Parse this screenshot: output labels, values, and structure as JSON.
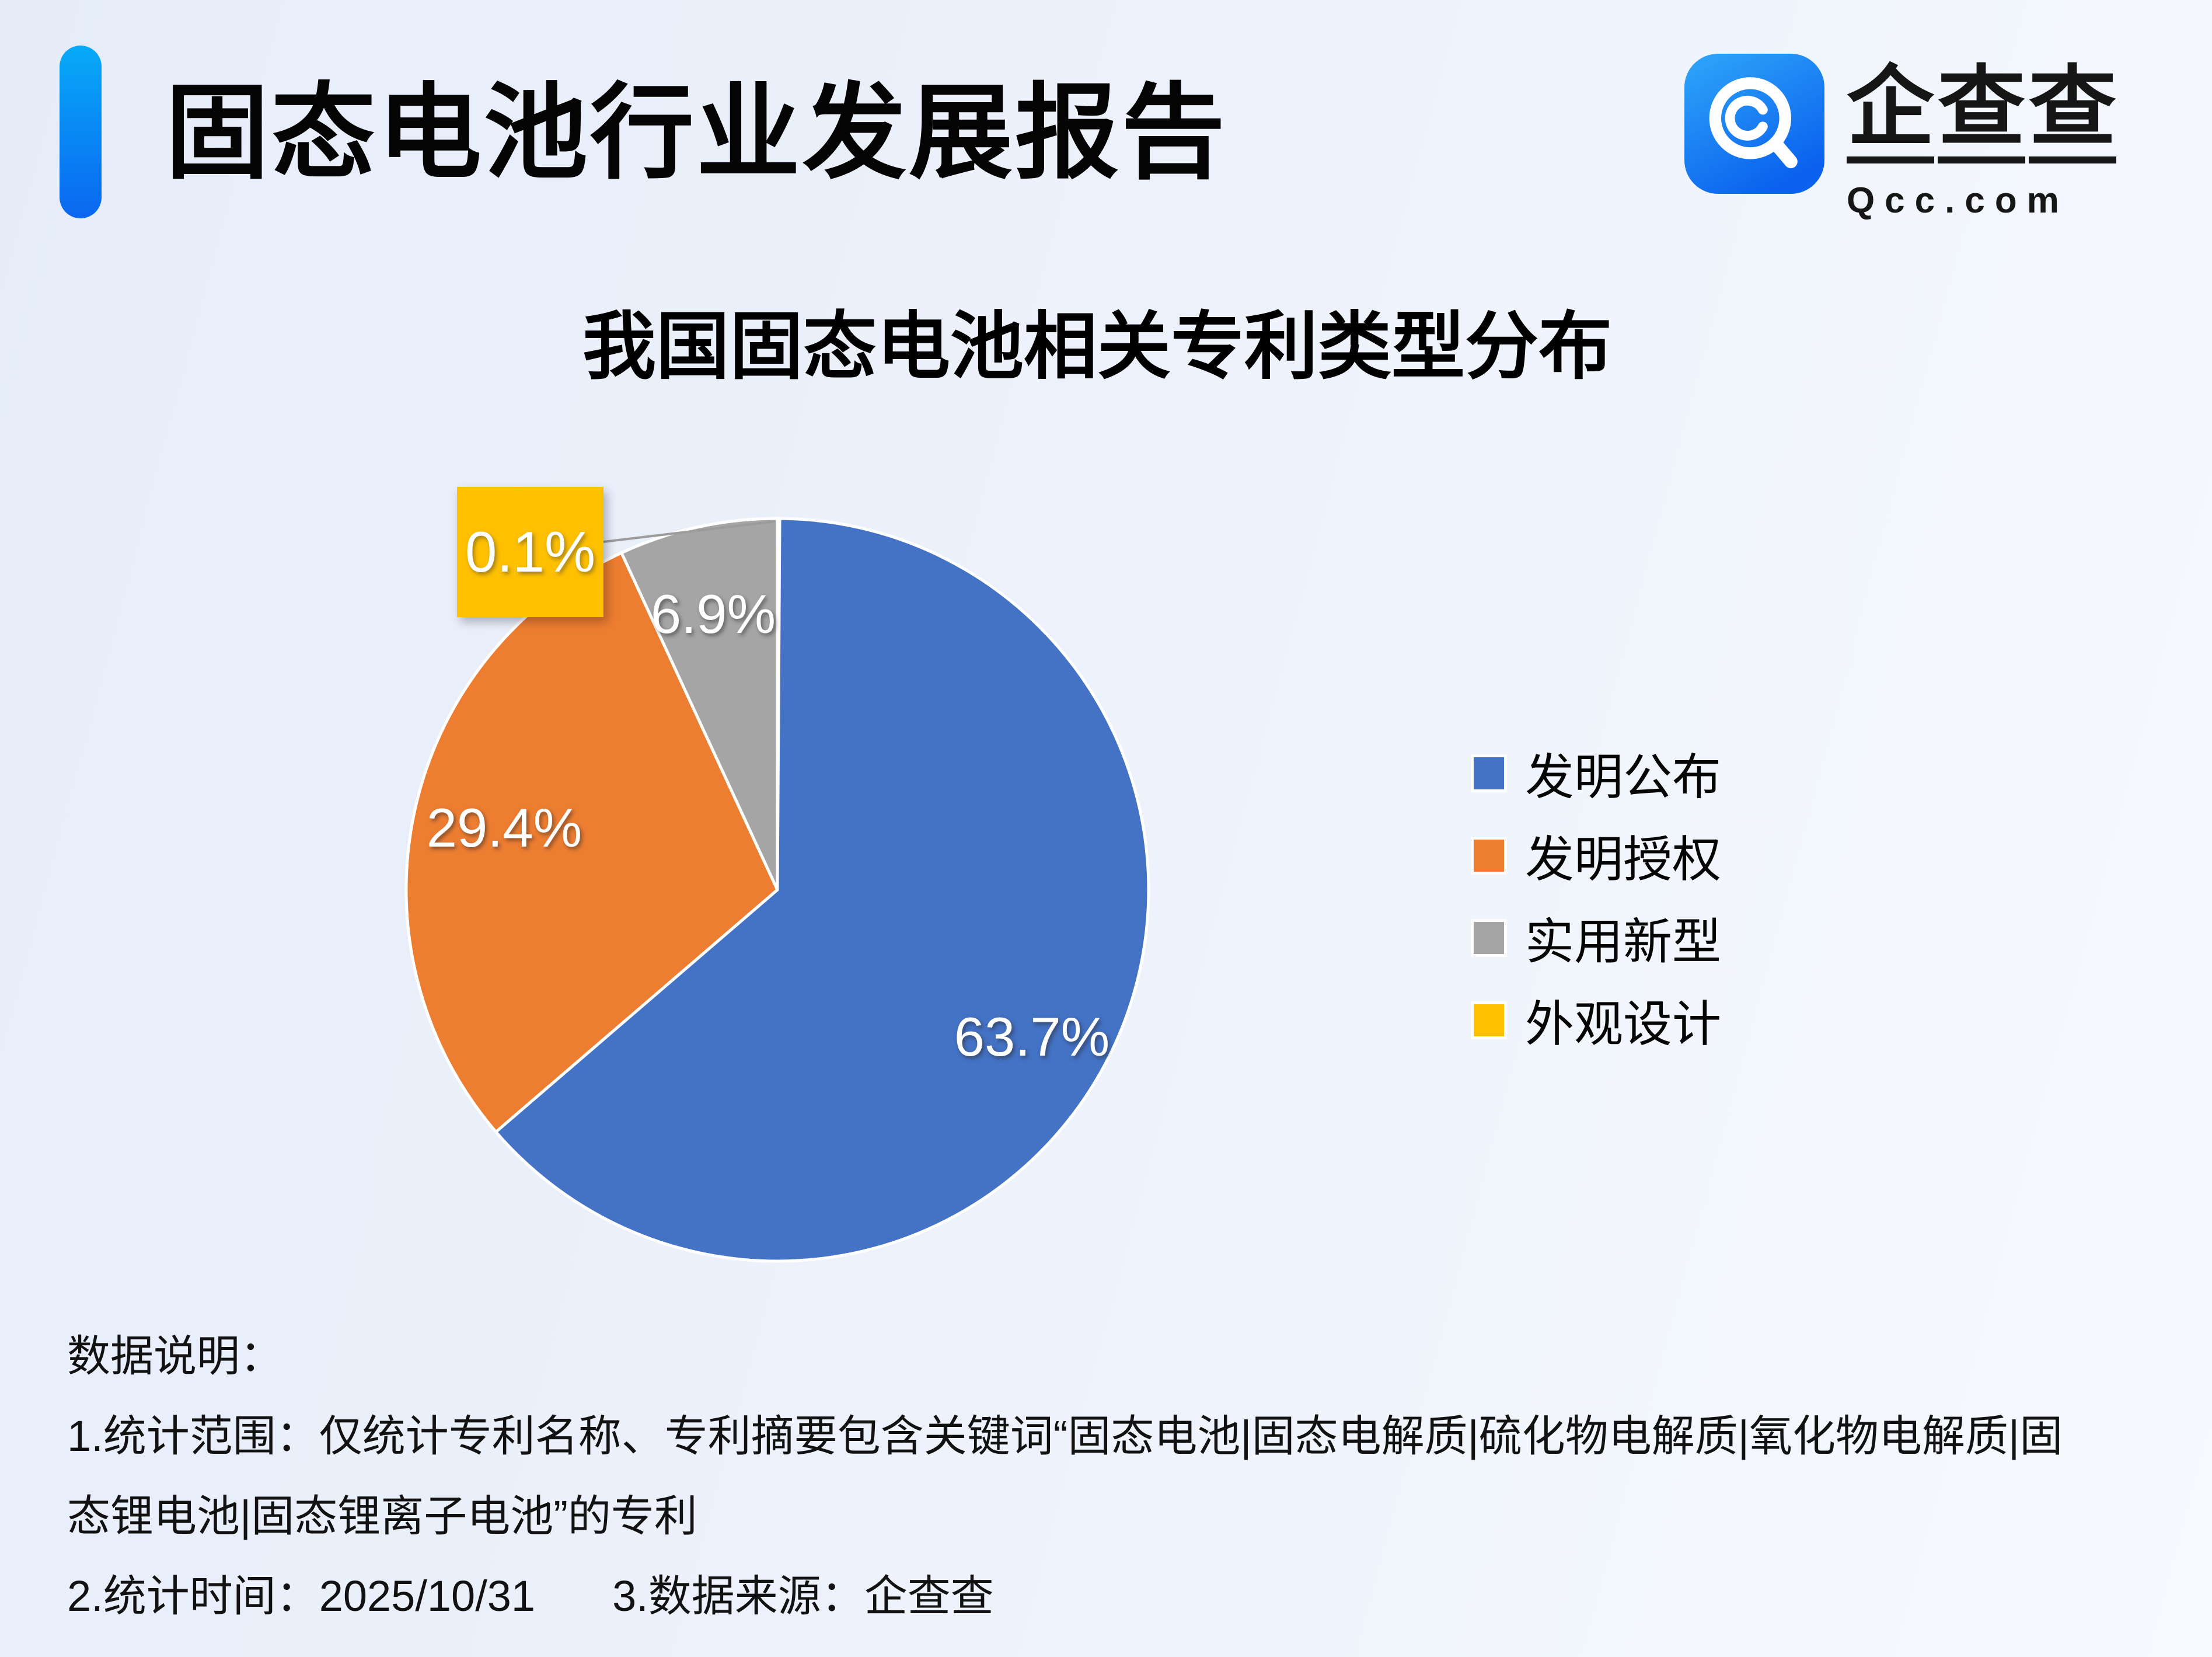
{
  "header": {
    "title": "固态电池行业发展报告"
  },
  "logo": {
    "chars": [
      "企",
      "查",
      "查"
    ],
    "domain": "Qcc.com",
    "icon": "qcc-magnifier-icon",
    "icon_color": "#1479f2"
  },
  "chart_data": {
    "type": "pie",
    "title": "我国固态电池相关专利类型分布",
    "categories": [
      "发明公布",
      "发明授权",
      "实用新型",
      "外观设计"
    ],
    "values": [
      63.7,
      29.4,
      6.9,
      0.1
    ],
    "unit": "%",
    "labels": [
      "63.7%",
      "29.4%",
      "6.9%",
      "0.1%"
    ],
    "colors": [
      "#4472C4",
      "#ED7D31",
      "#A5A5A5",
      "#FFC000"
    ],
    "start_angle_deg": 0,
    "direction": "clockwise",
    "legend_position": "right"
  },
  "notes": {
    "heading": "数据说明：",
    "line1": "1.统计范围：仅统计专利名称、专利摘要包含关键词“固态电池|固态电解质|硫化物电解质|氧化物电解质|固",
    "line2": "态锂电池|固态锂离子电池”的专利",
    "line3a": "2.统计时间：2025/10/31",
    "line3b": "3.数据来源：企查查"
  }
}
